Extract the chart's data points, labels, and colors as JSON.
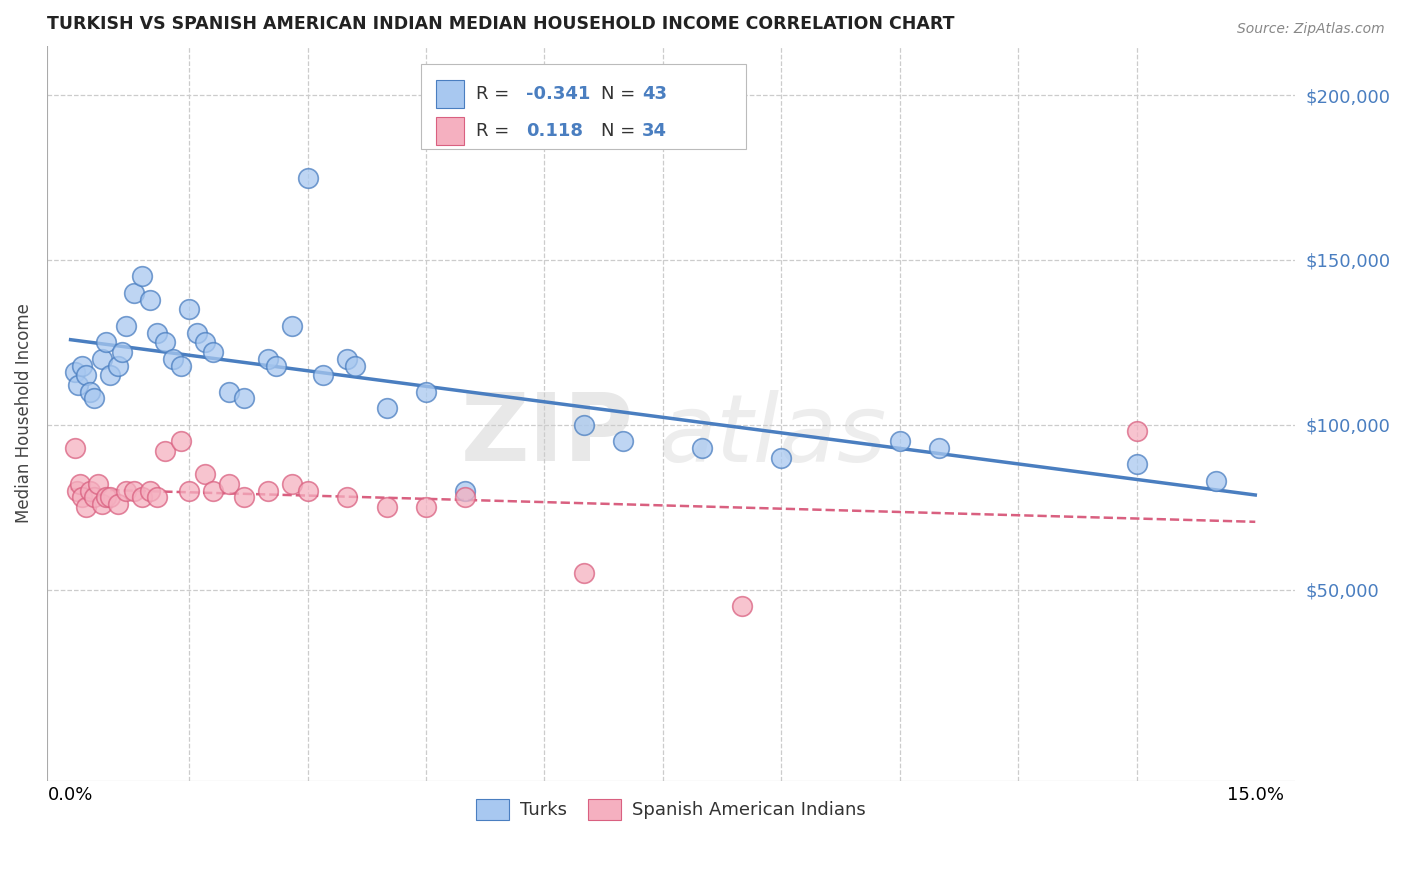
{
  "title": "TURKISH VS SPANISH AMERICAN INDIAN MEDIAN HOUSEHOLD INCOME CORRELATION CHART",
  "source": "Source: ZipAtlas.com",
  "xlabel_ticks_labeled": [
    "0.0%",
    "15.0%"
  ],
  "xlabel_ticks_labeled_vals": [
    0.0,
    15.0
  ],
  "xlabel_minor_vals": [
    1.5,
    3.0,
    4.5,
    6.0,
    7.5,
    9.0,
    10.5,
    12.0,
    13.5
  ],
  "ylabel": "Median Household Income",
  "ylabel_right_ticks": [
    "$50,000",
    "$100,000",
    "$150,000",
    "$200,000"
  ],
  "ylabel_right_vals": [
    50000,
    100000,
    150000,
    200000
  ],
  "xlim": [
    -0.3,
    15.5
  ],
  "ylim": [
    -8000,
    215000
  ],
  "blue_color": "#A8C8F0",
  "pink_color": "#F5B0C0",
  "blue_line_color": "#4A7EC0",
  "pink_line_color": "#D96080",
  "watermark_top": "ZIP",
  "watermark_bot": "atlas",
  "legend_r_blue": "-0.341",
  "legend_n_blue": "43",
  "legend_r_pink": "0.118",
  "legend_n_pink": "34",
  "turks_x": [
    0.05,
    0.1,
    0.15,
    0.2,
    0.25,
    0.3,
    0.4,
    0.45,
    0.5,
    0.6,
    0.65,
    0.7,
    0.8,
    0.9,
    1.0,
    1.1,
    1.2,
    1.3,
    1.4,
    1.5,
    1.6,
    1.7,
    1.8,
    2.0,
    2.2,
    2.5,
    2.6,
    2.8,
    3.0,
    3.2,
    3.5,
    3.6,
    4.0,
    4.5,
    5.0,
    6.5,
    7.0,
    8.0,
    9.0,
    10.5,
    11.0,
    13.5,
    14.5
  ],
  "turks_y": [
    116000,
    112000,
    118000,
    115000,
    110000,
    108000,
    120000,
    125000,
    115000,
    118000,
    122000,
    130000,
    140000,
    145000,
    138000,
    128000,
    125000,
    120000,
    118000,
    135000,
    128000,
    125000,
    122000,
    110000,
    108000,
    120000,
    118000,
    130000,
    175000,
    115000,
    120000,
    118000,
    105000,
    110000,
    80000,
    100000,
    95000,
    93000,
    90000,
    95000,
    93000,
    88000,
    83000
  ],
  "spanish_x": [
    0.05,
    0.08,
    0.12,
    0.15,
    0.2,
    0.25,
    0.3,
    0.35,
    0.4,
    0.45,
    0.5,
    0.6,
    0.7,
    0.8,
    0.9,
    1.0,
    1.1,
    1.2,
    1.4,
    1.5,
    1.7,
    1.8,
    2.0,
    2.2,
    2.5,
    2.8,
    3.0,
    3.5,
    4.0,
    4.5,
    5.0,
    6.5,
    8.5,
    13.5
  ],
  "spanish_y": [
    93000,
    80000,
    82000,
    78000,
    75000,
    80000,
    78000,
    82000,
    76000,
    78000,
    78000,
    76000,
    80000,
    80000,
    78000,
    80000,
    78000,
    92000,
    95000,
    80000,
    85000,
    80000,
    82000,
    78000,
    80000,
    82000,
    80000,
    78000,
    75000,
    75000,
    78000,
    55000,
    45000,
    98000
  ],
  "background_color": "#FFFFFF",
  "grid_color": "#CCCCCC"
}
